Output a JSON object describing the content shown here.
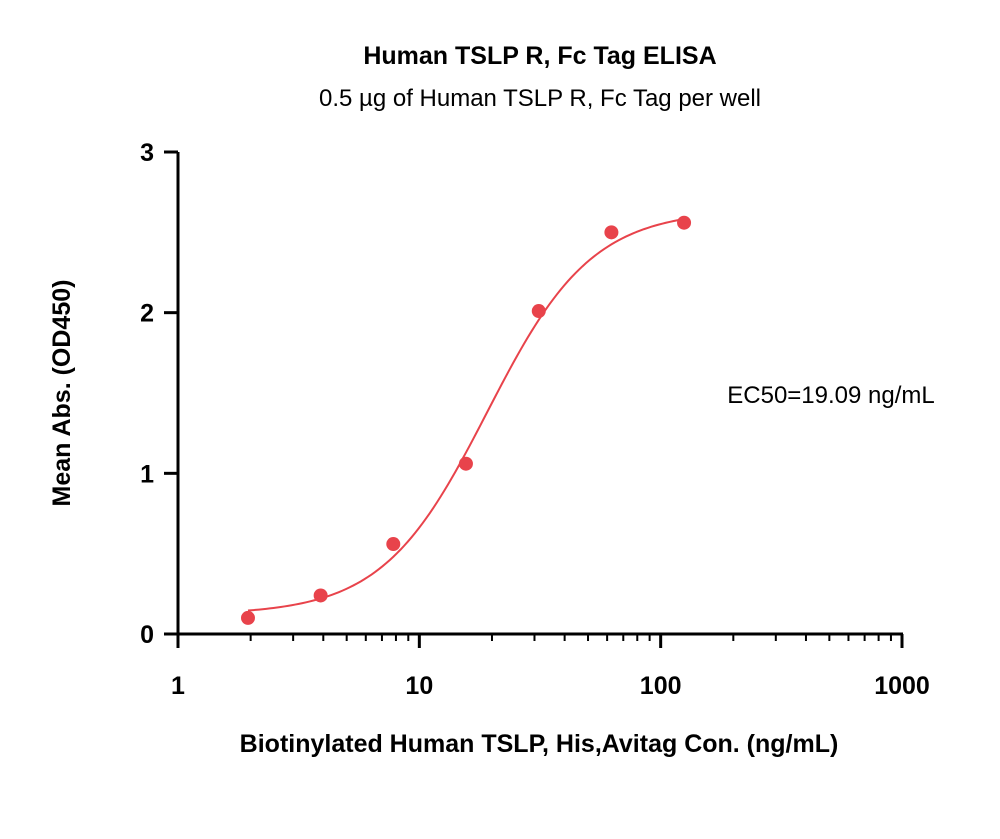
{
  "chart_data": {
    "type": "scatter",
    "title": "Human TSLP R, Fc Tag ELISA",
    "subtitle": "0.5 µg of Human TSLP R, Fc Tag per well",
    "xlabel": "Biotinylated Human TSLP, His,Avitag Con. (ng/mL)",
    "ylabel": "Mean Abs. (OD450)",
    "xscale": "log",
    "xlim": [
      1,
      1000
    ],
    "ylim": [
      0,
      3
    ],
    "x_ticks": [
      1,
      10,
      100,
      1000
    ],
    "x_tick_labels": [
      "1",
      "10",
      "100",
      "1000"
    ],
    "y_ticks": [
      0,
      1,
      2,
      3
    ],
    "y_tick_labels": [
      "0",
      "1",
      "2",
      "3"
    ],
    "grid": false,
    "legend": "none",
    "color": "#e8434b",
    "points": {
      "x": [
        1.95,
        3.9,
        7.8,
        15.6,
        31.25,
        62.5,
        125
      ],
      "y": [
        0.1,
        0.24,
        0.56,
        1.06,
        2.01,
        2.5,
        2.56
      ]
    },
    "fit_curve": {
      "model": "4PL",
      "bottom": 0.12,
      "top": 2.64,
      "ec50": 19.09,
      "hill": 2.0,
      "x_range": [
        1.95,
        125
      ]
    },
    "annotation": "EC50=19.09 ng/mL"
  }
}
